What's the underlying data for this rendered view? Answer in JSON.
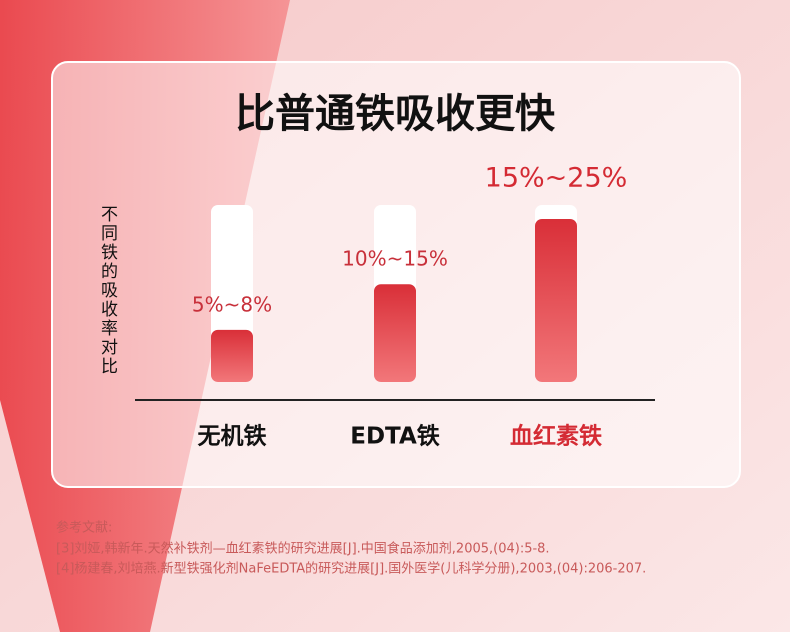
{
  "chart_data": {
    "type": "bar",
    "title": "比普通铁吸收更快",
    "y_label": "不同铁的吸收率对比",
    "categories": [
      "无机铁",
      "EDTA铁",
      "血红素铁"
    ],
    "category_colors": [
      "#111111",
      "#111111",
      "#d42b34"
    ],
    "values": [
      8,
      15,
      25
    ],
    "value_labels": [
      "5%~8%",
      "10%~15%",
      "15%~25%"
    ],
    "color": "#e23a42"
  },
  "references": {
    "heading": "参考文献:",
    "items": [
      "[3]刘娅,韩新年.天然补铁剂—血红素铁的研究进展[J].中国食品添加剂,2005,(04):5-8.",
      "[4]杨建春,刘培燕.新型铁强化剂NaFeEDTA的研究进展[J].国外医学(儿科学分册),2003,(04):206-207."
    ]
  }
}
